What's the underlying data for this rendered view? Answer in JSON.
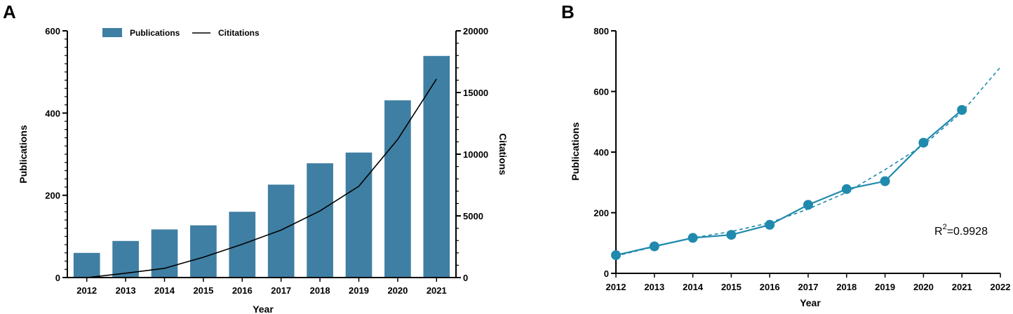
{
  "panels": {
    "a": "A",
    "b": "B"
  },
  "chart_data": [
    {
      "type": "bar",
      "categories": [
        "2012",
        "2013",
        "2014",
        "2015",
        "2016",
        "2017",
        "2018",
        "2019",
        "2020",
        "2021"
      ],
      "series": [
        {
          "name": "Publications",
          "type": "bar",
          "axis": "left",
          "values": [
            60,
            89,
            117,
            127,
            160,
            226,
            278,
            304,
            431,
            539
          ]
        },
        {
          "name": "Cititations",
          "type": "line",
          "axis": "right",
          "values": [
            0,
            350,
            750,
            1650,
            2700,
            3850,
            5400,
            7400,
            11200,
            16100
          ]
        }
      ],
      "xlabel": "Year",
      "ylabel": "Publications",
      "y2label": "Citations",
      "ylim": [
        0,
        600
      ],
      "yticks": [
        0,
        200,
        400,
        600
      ],
      "y2lim": [
        0,
        20000
      ],
      "y2ticks": [
        0,
        5000,
        10000,
        15000,
        20000
      ],
      "legend": "top",
      "colors": {
        "bar": "#3f7fa3",
        "line": "#000000"
      }
    },
    {
      "type": "line",
      "x": [
        2012,
        2013,
        2014,
        2015,
        2016,
        2017,
        2018,
        2019,
        2020,
        2021
      ],
      "series": [
        {
          "values": [
            60,
            89,
            117,
            127,
            160,
            226,
            278,
            304,
            431,
            539
          ]
        }
      ],
      "fit": {
        "x": [
          2012,
          2013,
          2014,
          2015,
          2016,
          2017,
          2018,
          2019,
          2020,
          2021,
          2022
        ],
        "values": [
          57,
          88,
          117,
          138,
          167,
          212,
          267,
          342,
          423,
          532,
          680
        ]
      },
      "annotation": {
        "prefix": "R",
        "sup": "2",
        "value": "=0.9928"
      },
      "xlabel": "Year",
      "ylabel": "Publications",
      "xlim": [
        2012,
        2022
      ],
      "xticks": [
        2012,
        2013,
        2014,
        2015,
        2016,
        2017,
        2018,
        2019,
        2020,
        2021,
        2022
      ],
      "ylim": [
        0,
        800
      ],
      "yticks": [
        0,
        200,
        400,
        600,
        800
      ],
      "colors": {
        "line": "#1f8aad"
      }
    }
  ]
}
